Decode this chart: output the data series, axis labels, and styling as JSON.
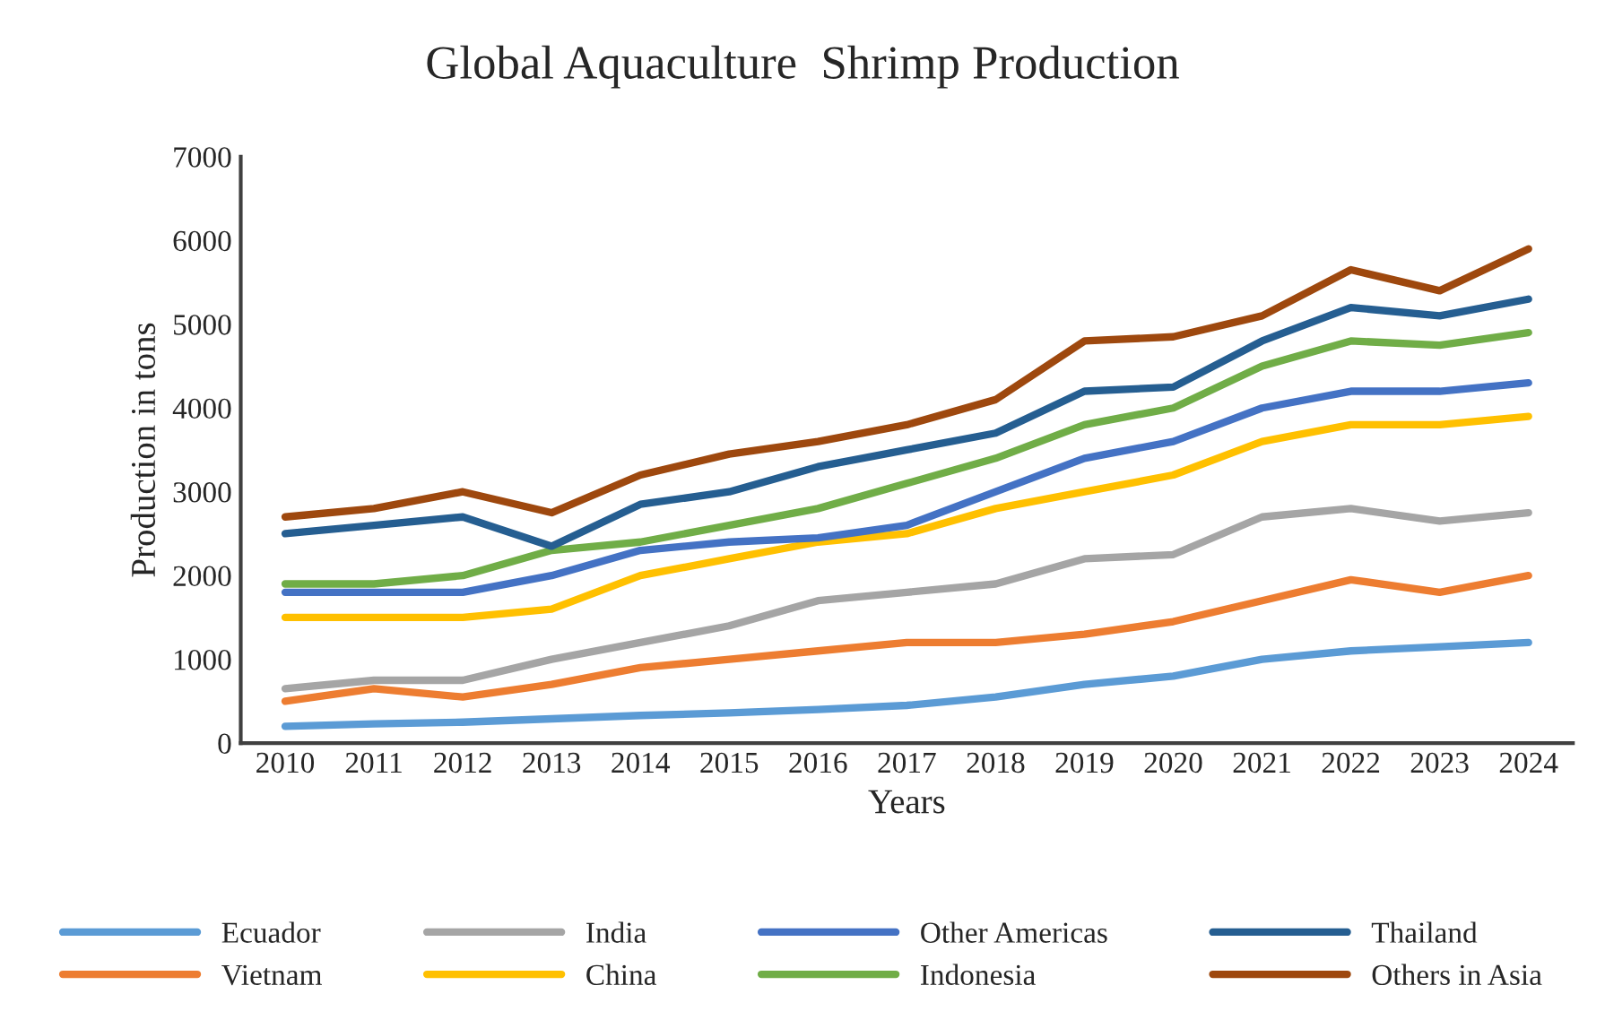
{
  "chart_data": {
    "type": "line",
    "title": "Global Aquaculture  Shrimp Production",
    "xlabel": "Years",
    "ylabel": "Production in tons",
    "categories": [
      "2010",
      "2011",
      "2012",
      "2013",
      "2014",
      "2015",
      "2016",
      "2017",
      "2018",
      "2019",
      "2020",
      "2021",
      "2022",
      "2023",
      "2024"
    ],
    "ylim": [
      0,
      7000
    ],
    "yticks": [
      0,
      1000,
      2000,
      3000,
      4000,
      5000,
      6000,
      7000
    ],
    "grid": false,
    "legend": "bottom",
    "marker": "none",
    "line_style": "solid",
    "series": [
      {
        "name": "Ecuador",
        "color": "#5b9bd5",
        "values": [
          200,
          230,
          250,
          290,
          330,
          360,
          400,
          450,
          550,
          700,
          800,
          1000,
          1100,
          1150,
          1200
        ]
      },
      {
        "name": "Vietnam",
        "color": "#ed7d31",
        "values": [
          500,
          650,
          550,
          700,
          900,
          1000,
          1100,
          1200,
          1200,
          1300,
          1450,
          1700,
          1950,
          1800,
          2000
        ]
      },
      {
        "name": "India",
        "color": "#a5a5a5",
        "values": [
          650,
          750,
          750,
          1000,
          1200,
          1400,
          1700,
          1800,
          1900,
          2200,
          2250,
          2700,
          2800,
          2650,
          2750
        ]
      },
      {
        "name": "China",
        "color": "#ffc000",
        "values": [
          1500,
          1500,
          1500,
          1600,
          2000,
          2200,
          2400,
          2500,
          2800,
          3000,
          3200,
          3600,
          3800,
          3800,
          3900
        ]
      },
      {
        "name": "Other Americas",
        "color": "#4472c4",
        "values": [
          1800,
          1800,
          1800,
          2000,
          2300,
          2400,
          2450,
          2600,
          3000,
          3400,
          3600,
          4000,
          4200,
          4200,
          4300
        ]
      },
      {
        "name": "Indonesia",
        "color": "#70ad47",
        "values": [
          1900,
          1900,
          2000,
          2300,
          2400,
          2600,
          2800,
          3100,
          3400,
          3800,
          4000,
          4500,
          4800,
          4750,
          4900
        ]
      },
      {
        "name": "Thailand",
        "color": "#255e91",
        "values": [
          2500,
          2600,
          2700,
          2350,
          2850,
          3000,
          3300,
          3500,
          3700,
          4200,
          4250,
          4800,
          5200,
          5100,
          5300
        ]
      },
      {
        "name": "Others in Asia",
        "color": "#9e480e",
        "values": [
          2700,
          2800,
          3000,
          2750,
          3200,
          3450,
          3600,
          3800,
          4100,
          4800,
          4850,
          5100,
          5650,
          5400,
          5900
        ]
      }
    ]
  }
}
